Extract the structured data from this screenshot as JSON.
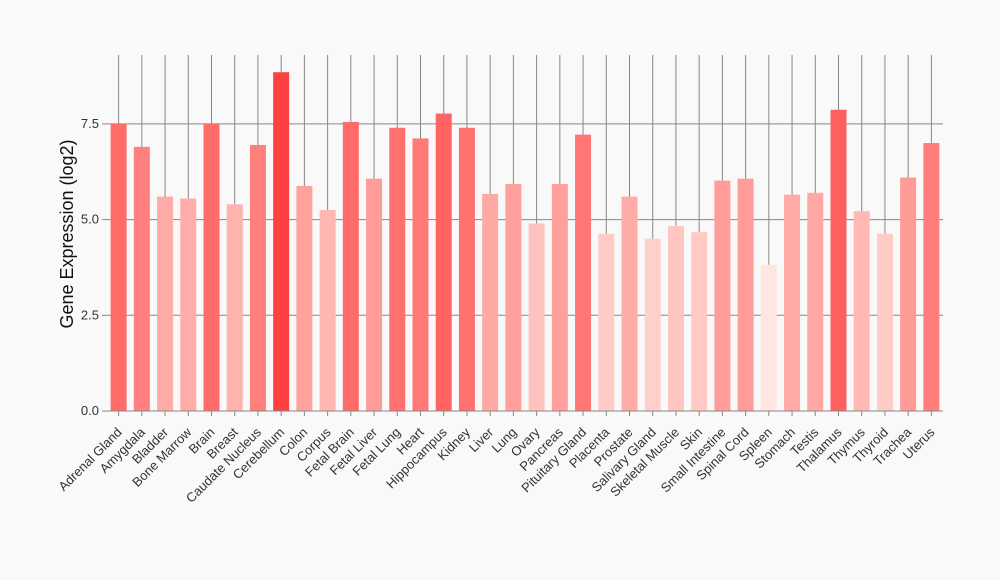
{
  "chart_data": {
    "type": "bar",
    "title": "",
    "xlabel": "",
    "ylabel": "Gene Expression (log2)",
    "ylim": [
      0,
      9.3
    ],
    "yticks": [
      0.0,
      2.5,
      5.0,
      7.5
    ],
    "ytick_labels": [
      "0.0",
      "2.5",
      "5.0",
      "7.5"
    ],
    "grid": "vertical lines per category and horizontal lines at y ticks",
    "categories": [
      "Adrenal Gland",
      "Amygdala",
      "Bladder",
      "Bone Marrow",
      "Brain",
      "Breast",
      "Caudate Nucleus",
      "Cerebellum",
      "Colon",
      "Corpus",
      "Fetal Brain",
      "Fetal Liver",
      "Fetal Lung",
      "Heart",
      "Hippocampus",
      "Kidney",
      "Liver",
      "Lung",
      "Ovary",
      "Pancreas",
      "Pituitary Gland",
      "Placenta",
      "Prostate",
      "Salivary Gland",
      "Skeletal Muscle",
      "Skin",
      "Small Intestine",
      "Spinal Cord",
      "Spleen",
      "Stomach",
      "Testis",
      "Thalamus",
      "Thymus",
      "Thyroid",
      "Trachea",
      "Uterus"
    ],
    "values": [
      7.5,
      6.9,
      5.6,
      5.55,
      7.5,
      5.4,
      6.95,
      8.85,
      5.88,
      5.25,
      7.55,
      6.07,
      7.4,
      7.12,
      7.77,
      7.4,
      5.67,
      5.93,
      4.9,
      5.93,
      7.22,
      4.63,
      5.6,
      4.5,
      4.83,
      4.67,
      6.02,
      6.07,
      3.82,
      5.65,
      5.7,
      7.87,
      5.22,
      4.63,
      6.1,
      7.0
    ],
    "colors": {
      "background": "#f9f9f9",
      "grid": "#888888",
      "bar_high": "#ff4040",
      "bar_low": "#ffe6e0"
    }
  }
}
